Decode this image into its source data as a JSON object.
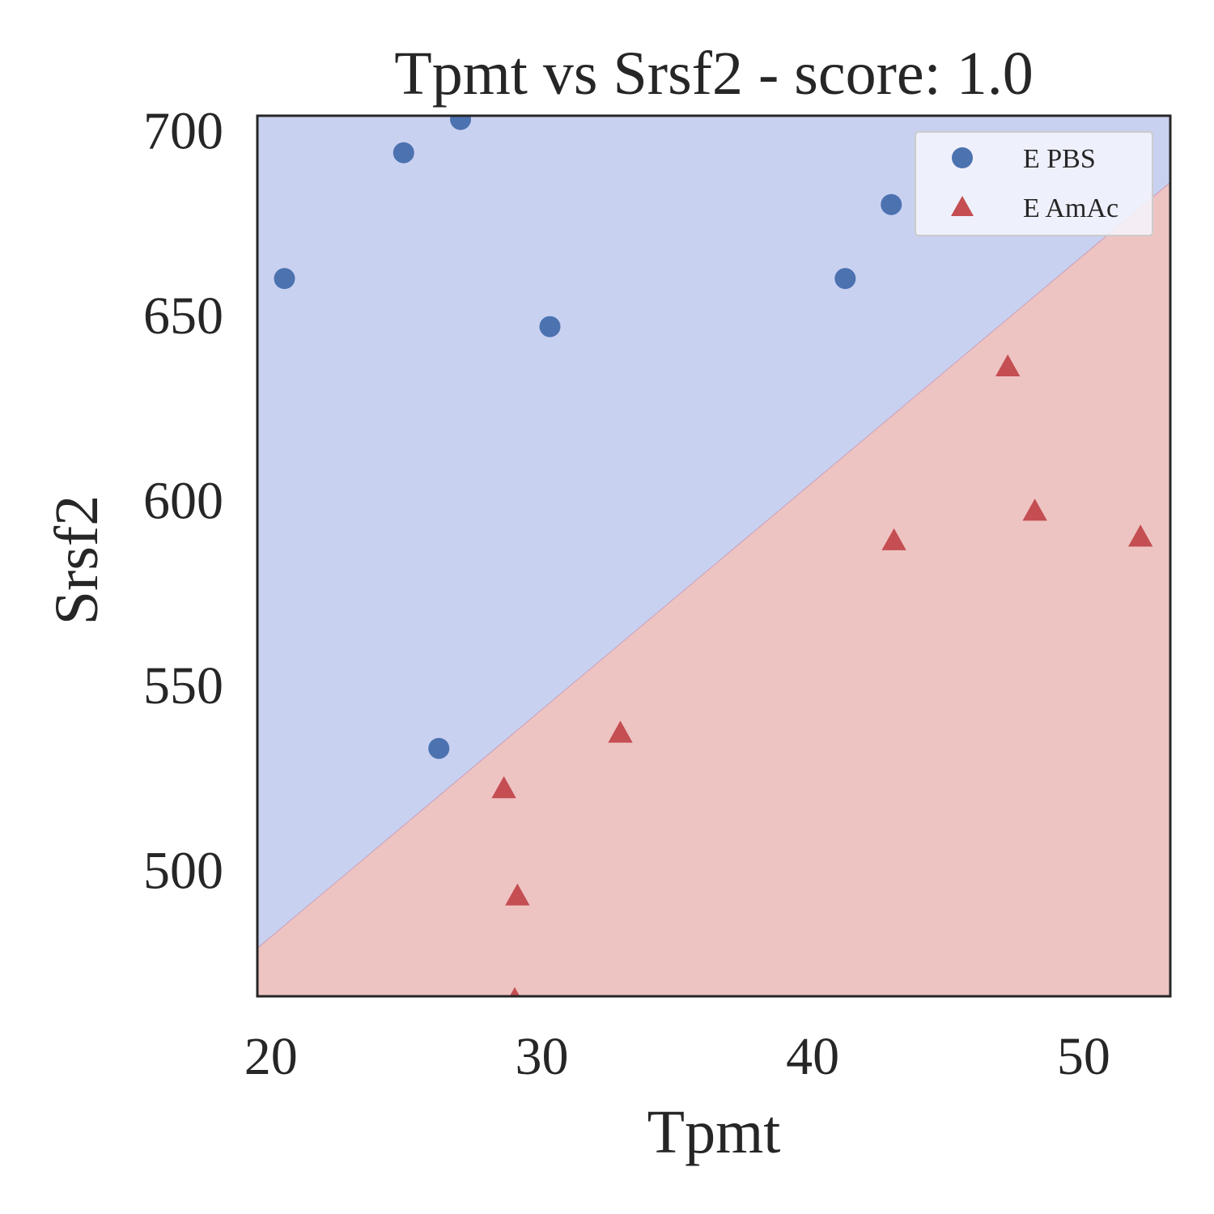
{
  "chart_data": {
    "type": "scatter",
    "title": "Tpmt vs Srsf2 - score: 1.0",
    "xlabel": "Tpmt",
    "ylabel": "Srsf2",
    "xlim": [
      19.5,
      53.2
    ],
    "ylim": [
      466,
      704
    ],
    "xticks": [
      20,
      30,
      40,
      50
    ],
    "yticks": [
      500,
      550,
      600,
      650,
      700
    ],
    "grid": false,
    "legend_position": "upper right",
    "decision_boundary": {
      "points": [
        [
          19.5,
          479
        ],
        [
          53.2,
          686
        ]
      ],
      "upper_region_color": "#c9d1f1",
      "lower_region_color": "#eec4c3"
    },
    "series": [
      {
        "name": "E PBS",
        "marker": "circle",
        "color": "#4c72b0",
        "points": [
          {
            "x": 20.5,
            "y": 660
          },
          {
            "x": 24.9,
            "y": 694
          },
          {
            "x": 27.0,
            "y": 703
          },
          {
            "x": 30.3,
            "y": 647
          },
          {
            "x": 26.2,
            "y": 533
          },
          {
            "x": 41.2,
            "y": 660
          },
          {
            "x": 42.9,
            "y": 680
          }
        ]
      },
      {
        "name": "E AmAc",
        "marker": "triangle",
        "color": "#c44e52",
        "points": [
          {
            "x": 47.2,
            "y": 636
          },
          {
            "x": 48.2,
            "y": 597
          },
          {
            "x": 43.0,
            "y": 589
          },
          {
            "x": 52.1,
            "y": 590
          },
          {
            "x": 32.9,
            "y": 537
          },
          {
            "x": 28.6,
            "y": 522
          },
          {
            "x": 29.1,
            "y": 493
          },
          {
            "x": 29.0,
            "y": 465
          }
        ]
      }
    ]
  }
}
